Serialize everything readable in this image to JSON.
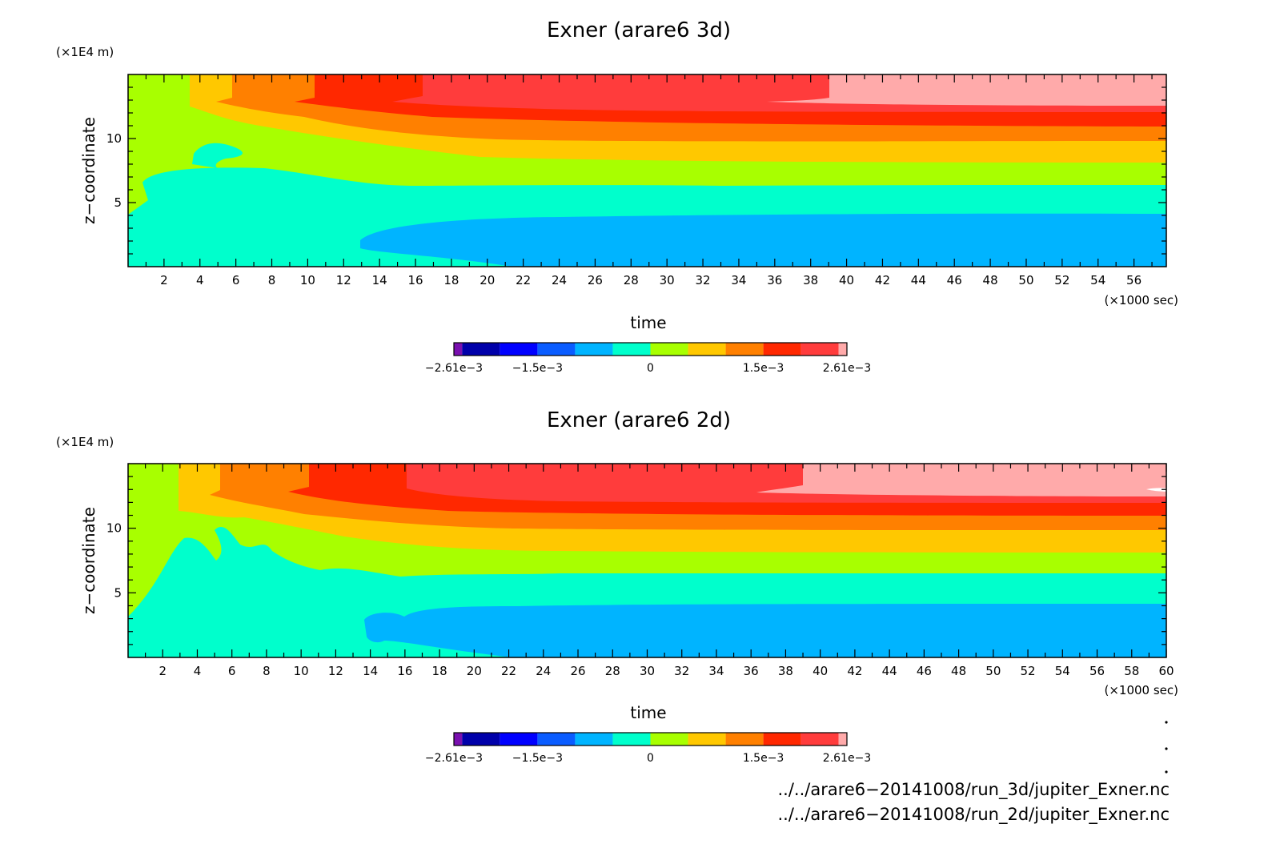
{
  "chart_data": [
    {
      "type": "heatmap",
      "title": "Exner (arare6 3d)",
      "xlabel": "time",
      "ylabel": "z−coordinate",
      "x_unit": "(×1000 sec)",
      "y_unit": "(×1E4 m)",
      "xlim": [
        0,
        57.8
      ],
      "ylim": [
        0,
        15
      ],
      "x_ticks": [
        2,
        4,
        6,
        8,
        10,
        12,
        14,
        16,
        18,
        20,
        22,
        24,
        26,
        28,
        30,
        32,
        34,
        36,
        38,
        40,
        42,
        44,
        46,
        48,
        50,
        52,
        54,
        56
      ],
      "y_ticks": [
        5,
        10
      ],
      "colorbar": {
        "tick_labels": [
          "−2.61e−3",
          "−1.5e−3",
          "0",
          "1.5e−3",
          "2.61e−3"
        ],
        "tick_values": [
          -0.00261,
          -0.0015,
          0,
          0.0015,
          0.00261
        ],
        "levels": [
          -0.00261,
          -0.0025,
          -0.002,
          -0.0015,
          -0.001,
          -0.0005,
          0.0,
          0.0005,
          0.001,
          0.0015,
          0.002,
          0.0025,
          0.00261
        ],
        "colors": [
          "#7a10b0",
          "#0000aa",
          "#0000ff",
          "#0a5cff",
          "#00b4ff",
          "#00ffcc",
          "#a8ff00",
          "#ffc800",
          "#ff8000",
          "#ff2800",
          "#ff3c3c",
          "#ffaaaa"
        ]
      }
    },
    {
      "type": "heatmap",
      "title": "Exner (arare6 2d)",
      "xlabel": "time",
      "ylabel": "z−coordinate",
      "x_unit": "(×1000 sec)",
      "y_unit": "(×1E4 m)",
      "xlim": [
        0,
        60
      ],
      "ylim": [
        0,
        15
      ],
      "x_ticks": [
        2,
        4,
        6,
        8,
        10,
        12,
        14,
        16,
        18,
        20,
        22,
        24,
        26,
        28,
        30,
        32,
        34,
        36,
        38,
        40,
        42,
        44,
        46,
        48,
        50,
        52,
        54,
        56,
        58,
        60
      ],
      "y_ticks": [
        5,
        10
      ],
      "colorbar": {
        "tick_labels": [
          "−2.61e−3",
          "−1.5e−3",
          "0",
          "1.5e−3",
          "2.61e−3"
        ],
        "tick_values": [
          -0.00261,
          -0.0015,
          0,
          0.0015,
          0.00261
        ],
        "levels": [
          -0.00261,
          -0.0025,
          -0.002,
          -0.0015,
          -0.001,
          -0.0005,
          0.0,
          0.0005,
          0.001,
          0.0015,
          0.002,
          0.0025,
          0.00261
        ],
        "colors": [
          "#7a10b0",
          "#0000aa",
          "#0000ff",
          "#0a5cff",
          "#00b4ff",
          "#00ffcc",
          "#a8ff00",
          "#ffc800",
          "#ff8000",
          "#ff2800",
          "#ff3c3c",
          "#ffaaaa"
        ]
      }
    }
  ],
  "source_files": [
    "../../arare6−20141008/run_3d/jupiter_Exner.nc",
    "../../arare6−20141008/run_2d/jupiter_Exner.nc"
  ]
}
